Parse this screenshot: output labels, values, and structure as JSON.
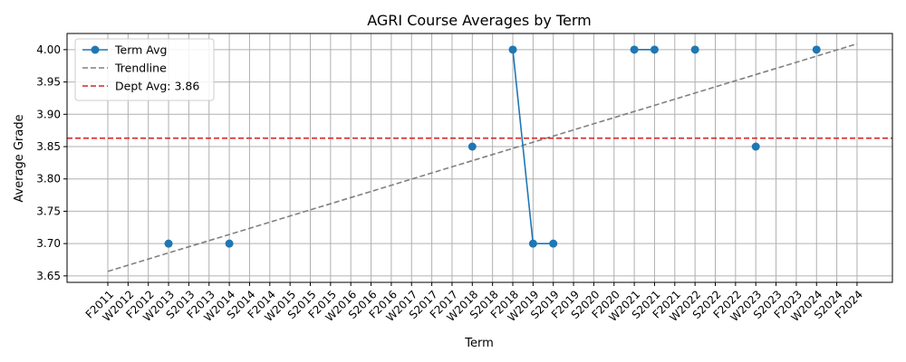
{
  "chart_data": {
    "type": "line",
    "title": "AGRI Course Averages by Term",
    "xlabel": "Term",
    "ylabel": "Average Grade",
    "categories": [
      "F2011",
      "W2012",
      "F2012",
      "W2013",
      "S2013",
      "F2013",
      "W2014",
      "S2014",
      "F2014",
      "W2015",
      "S2015",
      "F2015",
      "W2016",
      "S2016",
      "F2016",
      "W2017",
      "S2017",
      "F2017",
      "W2018",
      "S2018",
      "F2018",
      "W2019",
      "S2019",
      "F2019",
      "S2020",
      "F2020",
      "W2021",
      "S2021",
      "F2021",
      "W2022",
      "S2022",
      "F2022",
      "W2023",
      "S2023",
      "F2023",
      "W2024",
      "S2024",
      "F2024"
    ],
    "ylim": [
      3.64,
      4.025
    ],
    "yticks": [
      3.65,
      3.7,
      3.75,
      3.8,
      3.85,
      3.9,
      3.95,
      4.0
    ],
    "ytick_labels": [
      "3.65",
      "3.70",
      "3.75",
      "3.80",
      "3.85",
      "3.90",
      "3.95",
      "4.00"
    ],
    "grid": true,
    "legend_position": "top-left",
    "series": [
      {
        "name": "Term Avg",
        "color": "#1f77b4",
        "points": [
          {
            "x": "W2013",
            "y": 3.7
          },
          {
            "x": "W2014",
            "y": 3.7
          },
          {
            "x": "W2018",
            "y": 3.85
          },
          {
            "x": "F2018",
            "y": 4.0
          },
          {
            "x": "W2019",
            "y": 3.7
          },
          {
            "x": "S2019",
            "y": 3.7
          },
          {
            "x": "W2021",
            "y": 4.0
          },
          {
            "x": "S2021",
            "y": 4.0
          },
          {
            "x": "W2022",
            "y": 4.0
          },
          {
            "x": "W2023",
            "y": 3.85
          },
          {
            "x": "W2024",
            "y": 4.0
          }
        ],
        "line_segments": [
          [
            "F2018",
            "W2019",
            "S2019"
          ],
          [
            "W2021",
            "S2021"
          ]
        ]
      },
      {
        "name": "Trendline",
        "color": "#808080",
        "style": "dashed",
        "from": {
          "x": "F2011",
          "y": 3.657
        },
        "to": {
          "x": "F2024",
          "y": 4.009
        }
      },
      {
        "name": "Dept Avg: 3.86",
        "color": "#d62728",
        "style": "dashed",
        "value": 3.863
      }
    ]
  }
}
